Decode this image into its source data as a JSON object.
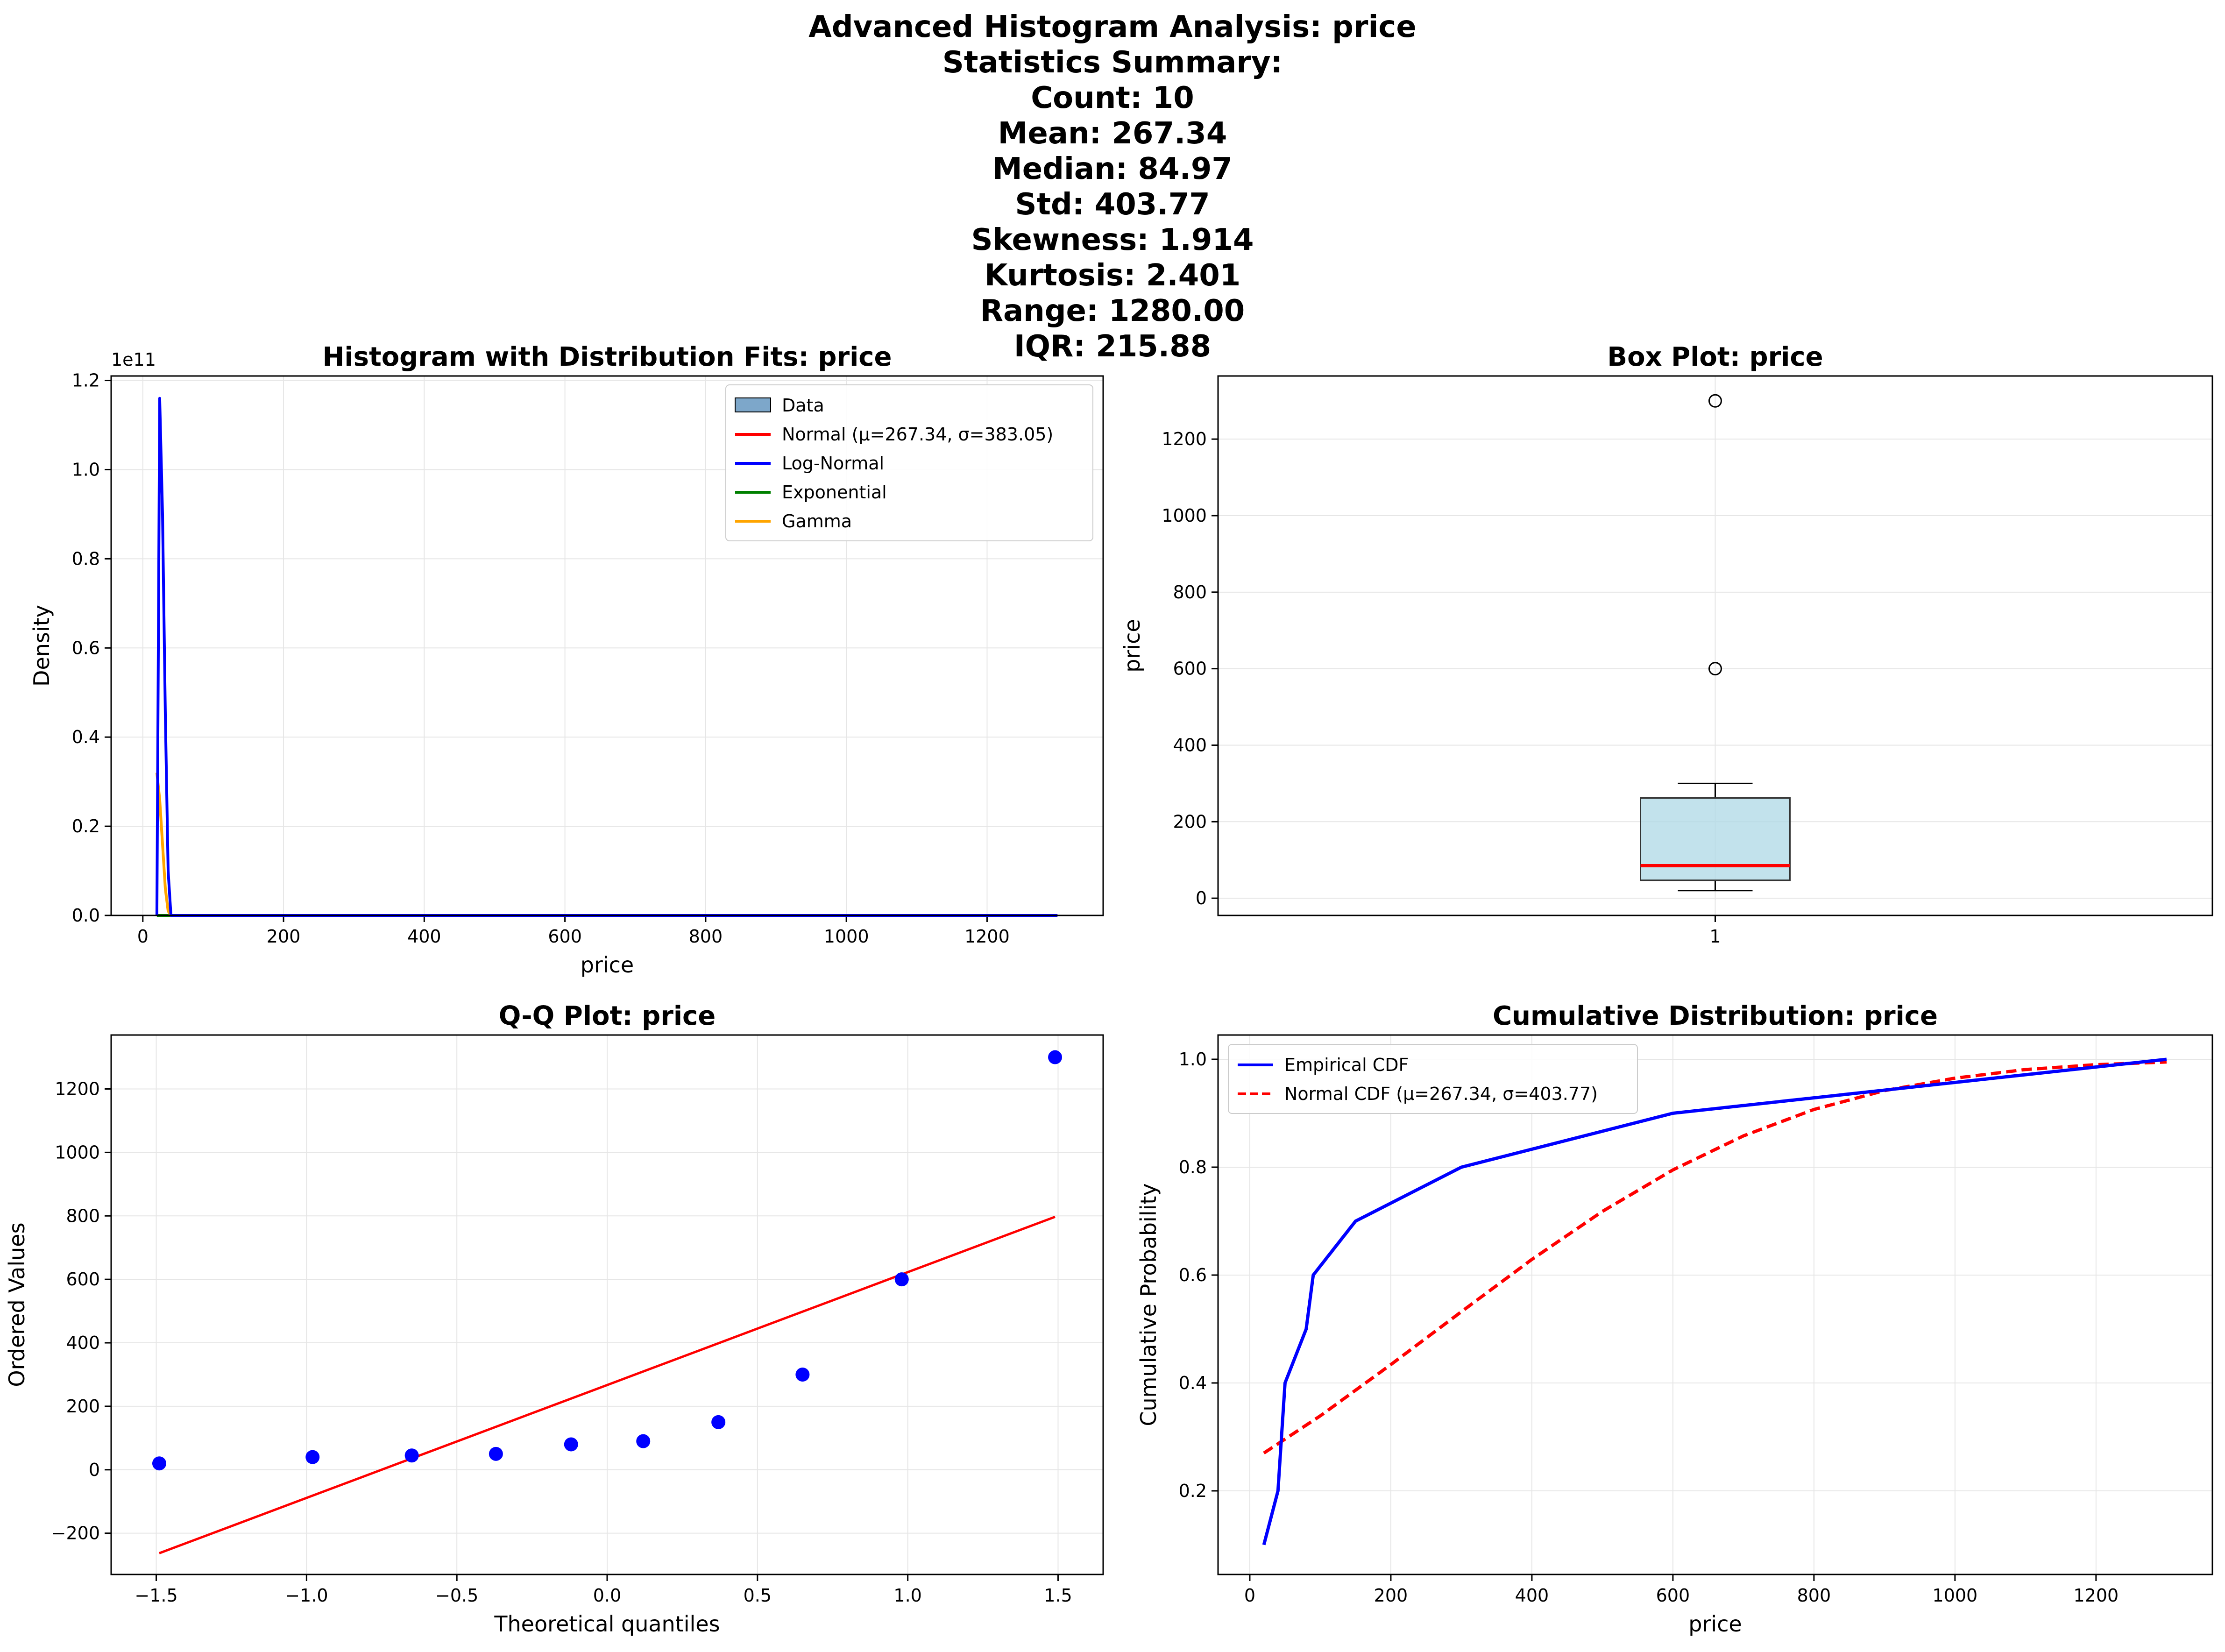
{
  "suptitle": {
    "lines": [
      "Advanced Histogram Analysis: price",
      "Statistics Summary:",
      "Count: 10",
      "Mean: 267.34",
      "Median: 84.97",
      "Std: 403.77",
      "Skewness: 1.914",
      "Kurtosis: 2.401",
      "Range: 1280.00",
      "IQR: 215.88"
    ]
  },
  "chart_data": [
    {
      "type": "line",
      "title": "Histogram with Distribution Fits: price",
      "xlabel": "price",
      "ylabel": "Density",
      "y_offset_label": "1e11",
      "xlim": [
        -45,
        1365
      ],
      "ylim": [
        0,
        1.21
      ],
      "xticks": [
        "0",
        "200",
        "400",
        "600",
        "800",
        "1000",
        "1200"
      ],
      "yticks": [
        "0.0",
        "0.2",
        "0.4",
        "0.6",
        "0.8",
        "1.0",
        "1.2"
      ],
      "grid": true,
      "legend_position": "top-right",
      "legend": [
        "Data",
        "Normal (μ=267.34, σ=383.05)",
        "Log-Normal",
        "Exponential",
        "Gamma"
      ],
      "colors": {
        "data": "#4682b4",
        "normal": "#ff0000",
        "lognormal": "#0000ff",
        "exponential": "#008000",
        "gamma": "#ffa500"
      },
      "series": [
        {
          "name": "Normal (μ=267.34, σ=383.05)",
          "x": [
            20,
            1300
          ],
          "y": [
            0,
            0
          ]
        },
        {
          "name": "Log-Normal",
          "x": [
            20,
            24,
            28,
            32,
            36,
            40,
            100,
            1300
          ],
          "y": [
            0,
            1.16,
            0.9,
            0.45,
            0.1,
            0,
            0,
            0
          ]
        },
        {
          "name": "Exponential",
          "x": [
            20,
            1300
          ],
          "y": [
            0,
            0
          ]
        },
        {
          "name": "Gamma",
          "x": [
            20,
            24,
            28,
            32,
            36,
            40,
            1300
          ],
          "y": [
            0.32,
            0.26,
            0.16,
            0.06,
            0.01,
            0,
            0
          ]
        }
      ]
    },
    {
      "type": "box",
      "title": "Box Plot: price",
      "xlabel": "",
      "ylabel": "price",
      "category": "1",
      "xlim": [
        0.5,
        1.5
      ],
      "ylim": [
        -45,
        1365
      ],
      "yticks": [
        "0",
        "200",
        "400",
        "600",
        "800",
        "1000",
        "1200"
      ],
      "grid": true,
      "q1": 47,
      "median": 84.97,
      "q3": 262,
      "whisker_low": 20,
      "whisker_high": 300,
      "outliers": [
        600,
        1300
      ],
      "colors": {
        "box": "#add8e6",
        "median": "#ff0000"
      }
    },
    {
      "type": "scatter",
      "title": "Q-Q Plot: price",
      "xlabel": "Theoretical quantiles",
      "ylabel": "Ordered Values",
      "xlim": [
        -1.65,
        1.65
      ],
      "ylim": [
        -330,
        1370
      ],
      "xticks": [
        "−1.5",
        "−1.0",
        "−0.5",
        "0.0",
        "0.5",
        "1.0",
        "1.5"
      ],
      "yticks": [
        "−200",
        "0",
        "200",
        "400",
        "600",
        "800",
        "1000",
        "1200"
      ],
      "grid": true,
      "points": {
        "x": [
          -1.49,
          -0.98,
          -0.65,
          -0.37,
          -0.12,
          0.12,
          0.37,
          0.65,
          0.98,
          1.49
        ],
        "y": [
          20,
          40,
          45,
          50,
          80,
          90,
          150,
          300,
          600,
          1300
        ]
      },
      "fit_line": {
        "x": [
          -1.49,
          1.49
        ],
        "y": [
          -263,
          797
        ]
      },
      "colors": {
        "points": "#0000ff",
        "line": "#ff0000"
      }
    },
    {
      "type": "line",
      "title": "Cumulative Distribution: price",
      "xlabel": "price",
      "ylabel": "Cumulative Probability",
      "xlim": [
        -45,
        1365
      ],
      "ylim": [
        0.045,
        1.045
      ],
      "xticks": [
        "0",
        "200",
        "400",
        "600",
        "800",
        "1000",
        "1200"
      ],
      "yticks": [
        "0.2",
        "0.4",
        "0.6",
        "0.8",
        "1.0"
      ],
      "grid": true,
      "legend_position": "top-left",
      "legend": [
        "Empirical CDF",
        "Normal CDF (μ=267.34, σ=403.77)"
      ],
      "series": [
        {
          "name": "Empirical CDF",
          "color": "#0000ff",
          "dash": false,
          "x": [
            20,
            40,
            50,
            80,
            90,
            150,
            300,
            600,
            1300
          ],
          "y": [
            0.1,
            0.2,
            0.4,
            0.5,
            0.6,
            0.7,
            0.8,
            0.9,
            1.0
          ]
        },
        {
          "name": "Normal CDF (μ=267.34, σ=403.77)",
          "color": "#ff0000",
          "dash": true,
          "x": [
            20,
            100,
            200,
            300,
            400,
            500,
            600,
            700,
            800,
            900,
            1000,
            1100,
            1200,
            1300
          ],
          "y": [
            0.27,
            0.339,
            0.434,
            0.532,
            0.629,
            0.718,
            0.795,
            0.858,
            0.907,
            0.942,
            0.965,
            0.981,
            0.99,
            0.995
          ]
        }
      ]
    }
  ]
}
